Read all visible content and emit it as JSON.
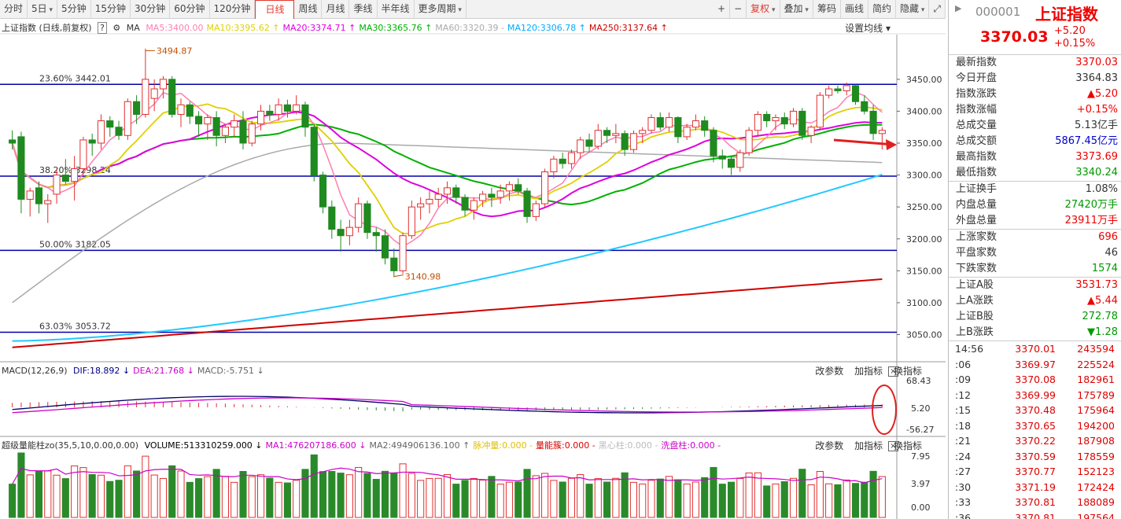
{
  "toolbar": {
    "tabs": [
      {
        "label": "分时"
      },
      {
        "label": "5日",
        "dd": true
      },
      {
        "label": "5分钟"
      },
      {
        "label": "15分钟"
      },
      {
        "label": "30分钟"
      },
      {
        "label": "60分钟"
      },
      {
        "label": "120分钟"
      },
      {
        "label": "日线",
        "active": true
      },
      {
        "label": "周线"
      },
      {
        "label": "月线"
      },
      {
        "label": "季线"
      },
      {
        "label": "半年线"
      },
      {
        "label": "更多周期",
        "dd": true
      }
    ],
    "right": [
      {
        "label": "+"
      },
      {
        "label": "−"
      },
      {
        "label": "复权",
        "dd": true,
        "red": true
      },
      {
        "label": "叠加",
        "dd": true
      },
      {
        "label": "筹码"
      },
      {
        "label": "画线"
      },
      {
        "label": "简约"
      },
      {
        "label": "隐藏",
        "dd": true
      },
      {
        "label": "⤢"
      }
    ]
  },
  "main_header": {
    "title": "上证指数 (日线,前复权)",
    "help": "?",
    "ma_label": "MA",
    "ma_items": [
      {
        "text": "MA5:3400.00",
        "color": "#ff7fb0"
      },
      {
        "text": "MA10:3395.62 ↑",
        "color": "#e0d000"
      },
      {
        "text": "MA20:3374.71 ↑",
        "color": "#e000e0"
      },
      {
        "text": "MA30:3365.76 ↑",
        "color": "#00b000"
      },
      {
        "text": "MA60:3320.39 -",
        "color": "#aaaaaa"
      },
      {
        "text": "MA120:3306.78 ↑",
        "color": "#00aaff"
      },
      {
        "text": "MA250:3137.64 ↑",
        "color": "#d00000"
      }
    ],
    "settings": "设置均线 ▾"
  },
  "macd_header": {
    "name": "MACD(12,26,9)",
    "items": [
      {
        "text": "DIF:18.892 ↓",
        "color": "#000088"
      },
      {
        "text": "DEA:21.768 ↓",
        "color": "#cc00cc"
      },
      {
        "text": "MACD:-5.751 ↓",
        "color": "#666"
      }
    ]
  },
  "vol_header": {
    "name": "超级量能柱zo(35,5,10,0.00,0.00)",
    "items": [
      {
        "text": "VOLUME:513310259.000 ↓",
        "color": "#000"
      },
      {
        "text": "MA1:476207186.600 ↓",
        "color": "#cc00cc"
      },
      {
        "text": "MA2:494906136.100 ↑",
        "color": "#666"
      },
      {
        "text": "脉冲量:0.000 -",
        "color": "#e0c000"
      },
      {
        "text": "量能簇:0.000 -",
        "color": "#dd0000"
      },
      {
        "text": "黑心柱:0.000 -",
        "color": "#bbb"
      },
      {
        "text": "洗盘柱:0.000 -",
        "color": "#cc00cc"
      }
    ]
  },
  "panel_actions": {
    "change": "改参数",
    "add": "加指标",
    "swap": "换指标",
    "close": "×"
  },
  "chart_data": {
    "type": "candlestick",
    "yaxis_ticks": [
      3450,
      3400,
      3350,
      3300,
      3250,
      3200,
      3150,
      3100,
      3050
    ],
    "yrange": [
      3010,
      3520
    ],
    "fib_levels": [
      {
        "label": "23.60% 3442.01",
        "value": 3442.01
      },
      {
        "label": "38.20% 3298.24",
        "value": 3298.24
      },
      {
        "label": "50.00% 3182.05",
        "value": 3182.05
      },
      {
        "label": "63.03% 3053.72",
        "value": 3053.72
      }
    ],
    "annotations": [
      {
        "text": "3494.87",
        "value": 3494.87
      },
      {
        "text": "3140.98",
        "value": 3140.98
      }
    ],
    "candles": [
      [
        3355,
        3370,
        3340,
        3350
      ],
      [
        3360,
        3368,
        3240,
        3262
      ],
      [
        3262,
        3280,
        3235,
        3275
      ],
      [
        3280,
        3290,
        3240,
        3255
      ],
      [
        3255,
        3270,
        3225,
        3260
      ],
      [
        3270,
        3310,
        3255,
        3300
      ],
      [
        3300,
        3325,
        3285,
        3290
      ],
      [
        3290,
        3330,
        3260,
        3310
      ],
      [
        3310,
        3360,
        3300,
        3355
      ],
      [
        3355,
        3365,
        3330,
        3350
      ],
      [
        3350,
        3395,
        3340,
        3385
      ],
      [
        3385,
        3392,
        3360,
        3375
      ],
      [
        3375,
        3385,
        3355,
        3362
      ],
      [
        3362,
        3420,
        3355,
        3415
      ],
      [
        3415,
        3425,
        3380,
        3395
      ],
      [
        3395,
        3498,
        3390,
        3450
      ],
      [
        3420,
        3450,
        3400,
        3435
      ],
      [
        3435,
        3455,
        3420,
        3450
      ],
      [
        3450,
        3455,
        3390,
        3395
      ],
      [
        3395,
        3420,
        3375,
        3410
      ],
      [
        3410,
        3415,
        3380,
        3392
      ],
      [
        3392,
        3400,
        3360,
        3380
      ],
      [
        3380,
        3395,
        3355,
        3390
      ],
      [
        3390,
        3400,
        3345,
        3362
      ],
      [
        3362,
        3380,
        3350,
        3375
      ],
      [
        3375,
        3395,
        3360,
        3385
      ],
      [
        3385,
        3400,
        3340,
        3350
      ],
      [
        3350,
        3385,
        3345,
        3380
      ],
      [
        3380,
        3410,
        3370,
        3400
      ],
      [
        3400,
        3410,
        3385,
        3395
      ],
      [
        3395,
        3420,
        3385,
        3410
      ],
      [
        3410,
        3418,
        3390,
        3400
      ],
      [
        3400,
        3425,
        3395,
        3410
      ],
      [
        3410,
        3415,
        3360,
        3375
      ],
      [
        3375,
        3380,
        3290,
        3300
      ],
      [
        3300,
        3305,
        3240,
        3250
      ],
      [
        3250,
        3260,
        3200,
        3215
      ],
      [
        3215,
        3230,
        3180,
        3205
      ],
      [
        3205,
        3230,
        3190,
        3218
      ],
      [
        3218,
        3265,
        3210,
        3255
      ],
      [
        3255,
        3260,
        3200,
        3210
      ],
      [
        3210,
        3218,
        3180,
        3205
      ],
      [
        3205,
        3215,
        3160,
        3170
      ],
      [
        3170,
        3185,
        3140,
        3150
      ],
      [
        3150,
        3210,
        3145,
        3205
      ],
      [
        3205,
        3260,
        3200,
        3250
      ],
      [
        3250,
        3265,
        3230,
        3255
      ],
      [
        3255,
        3275,
        3240,
        3262
      ],
      [
        3262,
        3280,
        3250,
        3270
      ],
      [
        3270,
        3290,
        3255,
        3280
      ],
      [
        3280,
        3285,
        3255,
        3265
      ],
      [
        3265,
        3270,
        3235,
        3245
      ],
      [
        3245,
        3265,
        3230,
        3260
      ],
      [
        3260,
        3275,
        3250,
        3270
      ],
      [
        3270,
        3280,
        3250,
        3265
      ],
      [
        3265,
        3285,
        3255,
        3275
      ],
      [
        3275,
        3290,
        3260,
        3285
      ],
      [
        3285,
        3295,
        3270,
        3275
      ],
      [
        3275,
        3280,
        3225,
        3235
      ],
      [
        3235,
        3260,
        3228,
        3255
      ],
      [
        3255,
        3310,
        3250,
        3305
      ],
      [
        3305,
        3330,
        3295,
        3325
      ],
      [
        3325,
        3335,
        3310,
        3318
      ],
      [
        3318,
        3340,
        3310,
        3335
      ],
      [
        3335,
        3360,
        3325,
        3355
      ],
      [
        3355,
        3365,
        3335,
        3345
      ],
      [
        3345,
        3380,
        3340,
        3370
      ],
      [
        3370,
        3375,
        3350,
        3362
      ],
      [
        3362,
        3380,
        3350,
        3365
      ],
      [
        3365,
        3370,
        3330,
        3340
      ],
      [
        3340,
        3370,
        3335,
        3365
      ],
      [
        3365,
        3375,
        3350,
        3370
      ],
      [
        3370,
        3395,
        3365,
        3390
      ],
      [
        3390,
        3398,
        3370,
        3375
      ],
      [
        3375,
        3398,
        3368,
        3390
      ],
      [
        3390,
        3392,
        3350,
        3360
      ],
      [
        3360,
        3380,
        3355,
        3375
      ],
      [
        3375,
        3395,
        3370,
        3385
      ],
      [
        3385,
        3392,
        3360,
        3370
      ],
      [
        3370,
        3375,
        3320,
        3330
      ],
      [
        3330,
        3340,
        3310,
        3325
      ],
      [
        3325,
        3330,
        3300,
        3312
      ],
      [
        3312,
        3340,
        3305,
        3335
      ],
      [
        3335,
        3375,
        3330,
        3370
      ],
      [
        3370,
        3400,
        3360,
        3395
      ],
      [
        3395,
        3400,
        3375,
        3385
      ],
      [
        3385,
        3395,
        3370,
        3390
      ],
      [
        3390,
        3398,
        3372,
        3380
      ],
      [
        3380,
        3405,
        3375,
        3400
      ],
      [
        3400,
        3405,
        3355,
        3362
      ],
      [
        3362,
        3378,
        3350,
        3375
      ],
      [
        3375,
        3430,
        3370,
        3425
      ],
      [
        3425,
        3440,
        3420,
        3435
      ],
      [
        3435,
        3440,
        3428,
        3432
      ],
      [
        3432,
        3445,
        3425,
        3440
      ],
      [
        3440,
        3442,
        3410,
        3415
      ],
      [
        3415,
        3425,
        3395,
        3400
      ],
      [
        3400,
        3410,
        3355,
        3365
      ],
      [
        3365,
        3375,
        3340,
        3370
      ]
    ],
    "macd_ticks": [
      "68.43",
      "5.20",
      "-56.27"
    ],
    "vol_ticks": [
      "7.95",
      "3.97",
      "0.00"
    ]
  },
  "quote": {
    "code": "000001",
    "name": "上证指数",
    "price": "3370.03",
    "change": "+5.20",
    "pct": "+0.15%",
    "sec1": [
      {
        "label": "最新指数",
        "value": "3370.03",
        "cls": "red"
      },
      {
        "label": "今日开盘",
        "value": "3364.83",
        "cls": ""
      },
      {
        "label": "指数涨跌",
        "value": "▲5.20",
        "cls": "red"
      },
      {
        "label": "指数涨幅",
        "value": "+0.15%",
        "cls": "red"
      },
      {
        "label": "总成交量",
        "value": "5.13亿手",
        "cls": ""
      },
      {
        "label": "总成交额",
        "value": "5867.45亿元",
        "cls": "blue"
      },
      {
        "label": "最高指数",
        "value": "3373.69",
        "cls": "red"
      },
      {
        "label": "最低指数",
        "value": "3340.24",
        "cls": "green"
      }
    ],
    "sec2": [
      {
        "label": "上证换手",
        "value": "1.08%",
        "cls": ""
      },
      {
        "label": "内盘总量",
        "value": "27420万手",
        "cls": "green"
      },
      {
        "label": "外盘总量",
        "value": "23911万手",
        "cls": "red"
      }
    ],
    "sec3": [
      {
        "label": "上涨家数",
        "value": "696",
        "cls": "red"
      },
      {
        "label": "平盘家数",
        "value": "46",
        "cls": ""
      },
      {
        "label": "下跌家数",
        "value": "1574",
        "cls": "green"
      }
    ],
    "sec4": [
      {
        "label": "上证A股",
        "value": "3531.73",
        "cls": "red"
      },
      {
        "label": "上A涨跌",
        "value": "▲5.44",
        "cls": "red"
      },
      {
        "label": "上证B股",
        "value": "272.78",
        "cls": "green"
      },
      {
        "label": "上B涨跌",
        "value": "▼1.28",
        "cls": "green"
      }
    ],
    "ticks": [
      {
        "t": "14:56",
        "p": "3370.01",
        "v": "243594"
      },
      {
        "t": ":06",
        "p": "3369.97",
        "v": "225524"
      },
      {
        "t": ":09",
        "p": "3370.08",
        "v": "182961"
      },
      {
        "t": ":12",
        "p": "3369.99",
        "v": "175789"
      },
      {
        "t": ":15",
        "p": "3370.48",
        "v": "175964"
      },
      {
        "t": ":18",
        "p": "3370.65",
        "v": "194200"
      },
      {
        "t": ":21",
        "p": "3370.22",
        "v": "187908"
      },
      {
        "t": ":24",
        "p": "3370.59",
        "v": "178559"
      },
      {
        "t": ":27",
        "p": "3370.77",
        "v": "152123"
      },
      {
        "t": ":30",
        "p": "3371.19",
        "v": "172424"
      },
      {
        "t": ":33",
        "p": "3370.81",
        "v": "188089"
      },
      {
        "t": ":36",
        "p": "3370.81",
        "v": "197564"
      }
    ]
  }
}
